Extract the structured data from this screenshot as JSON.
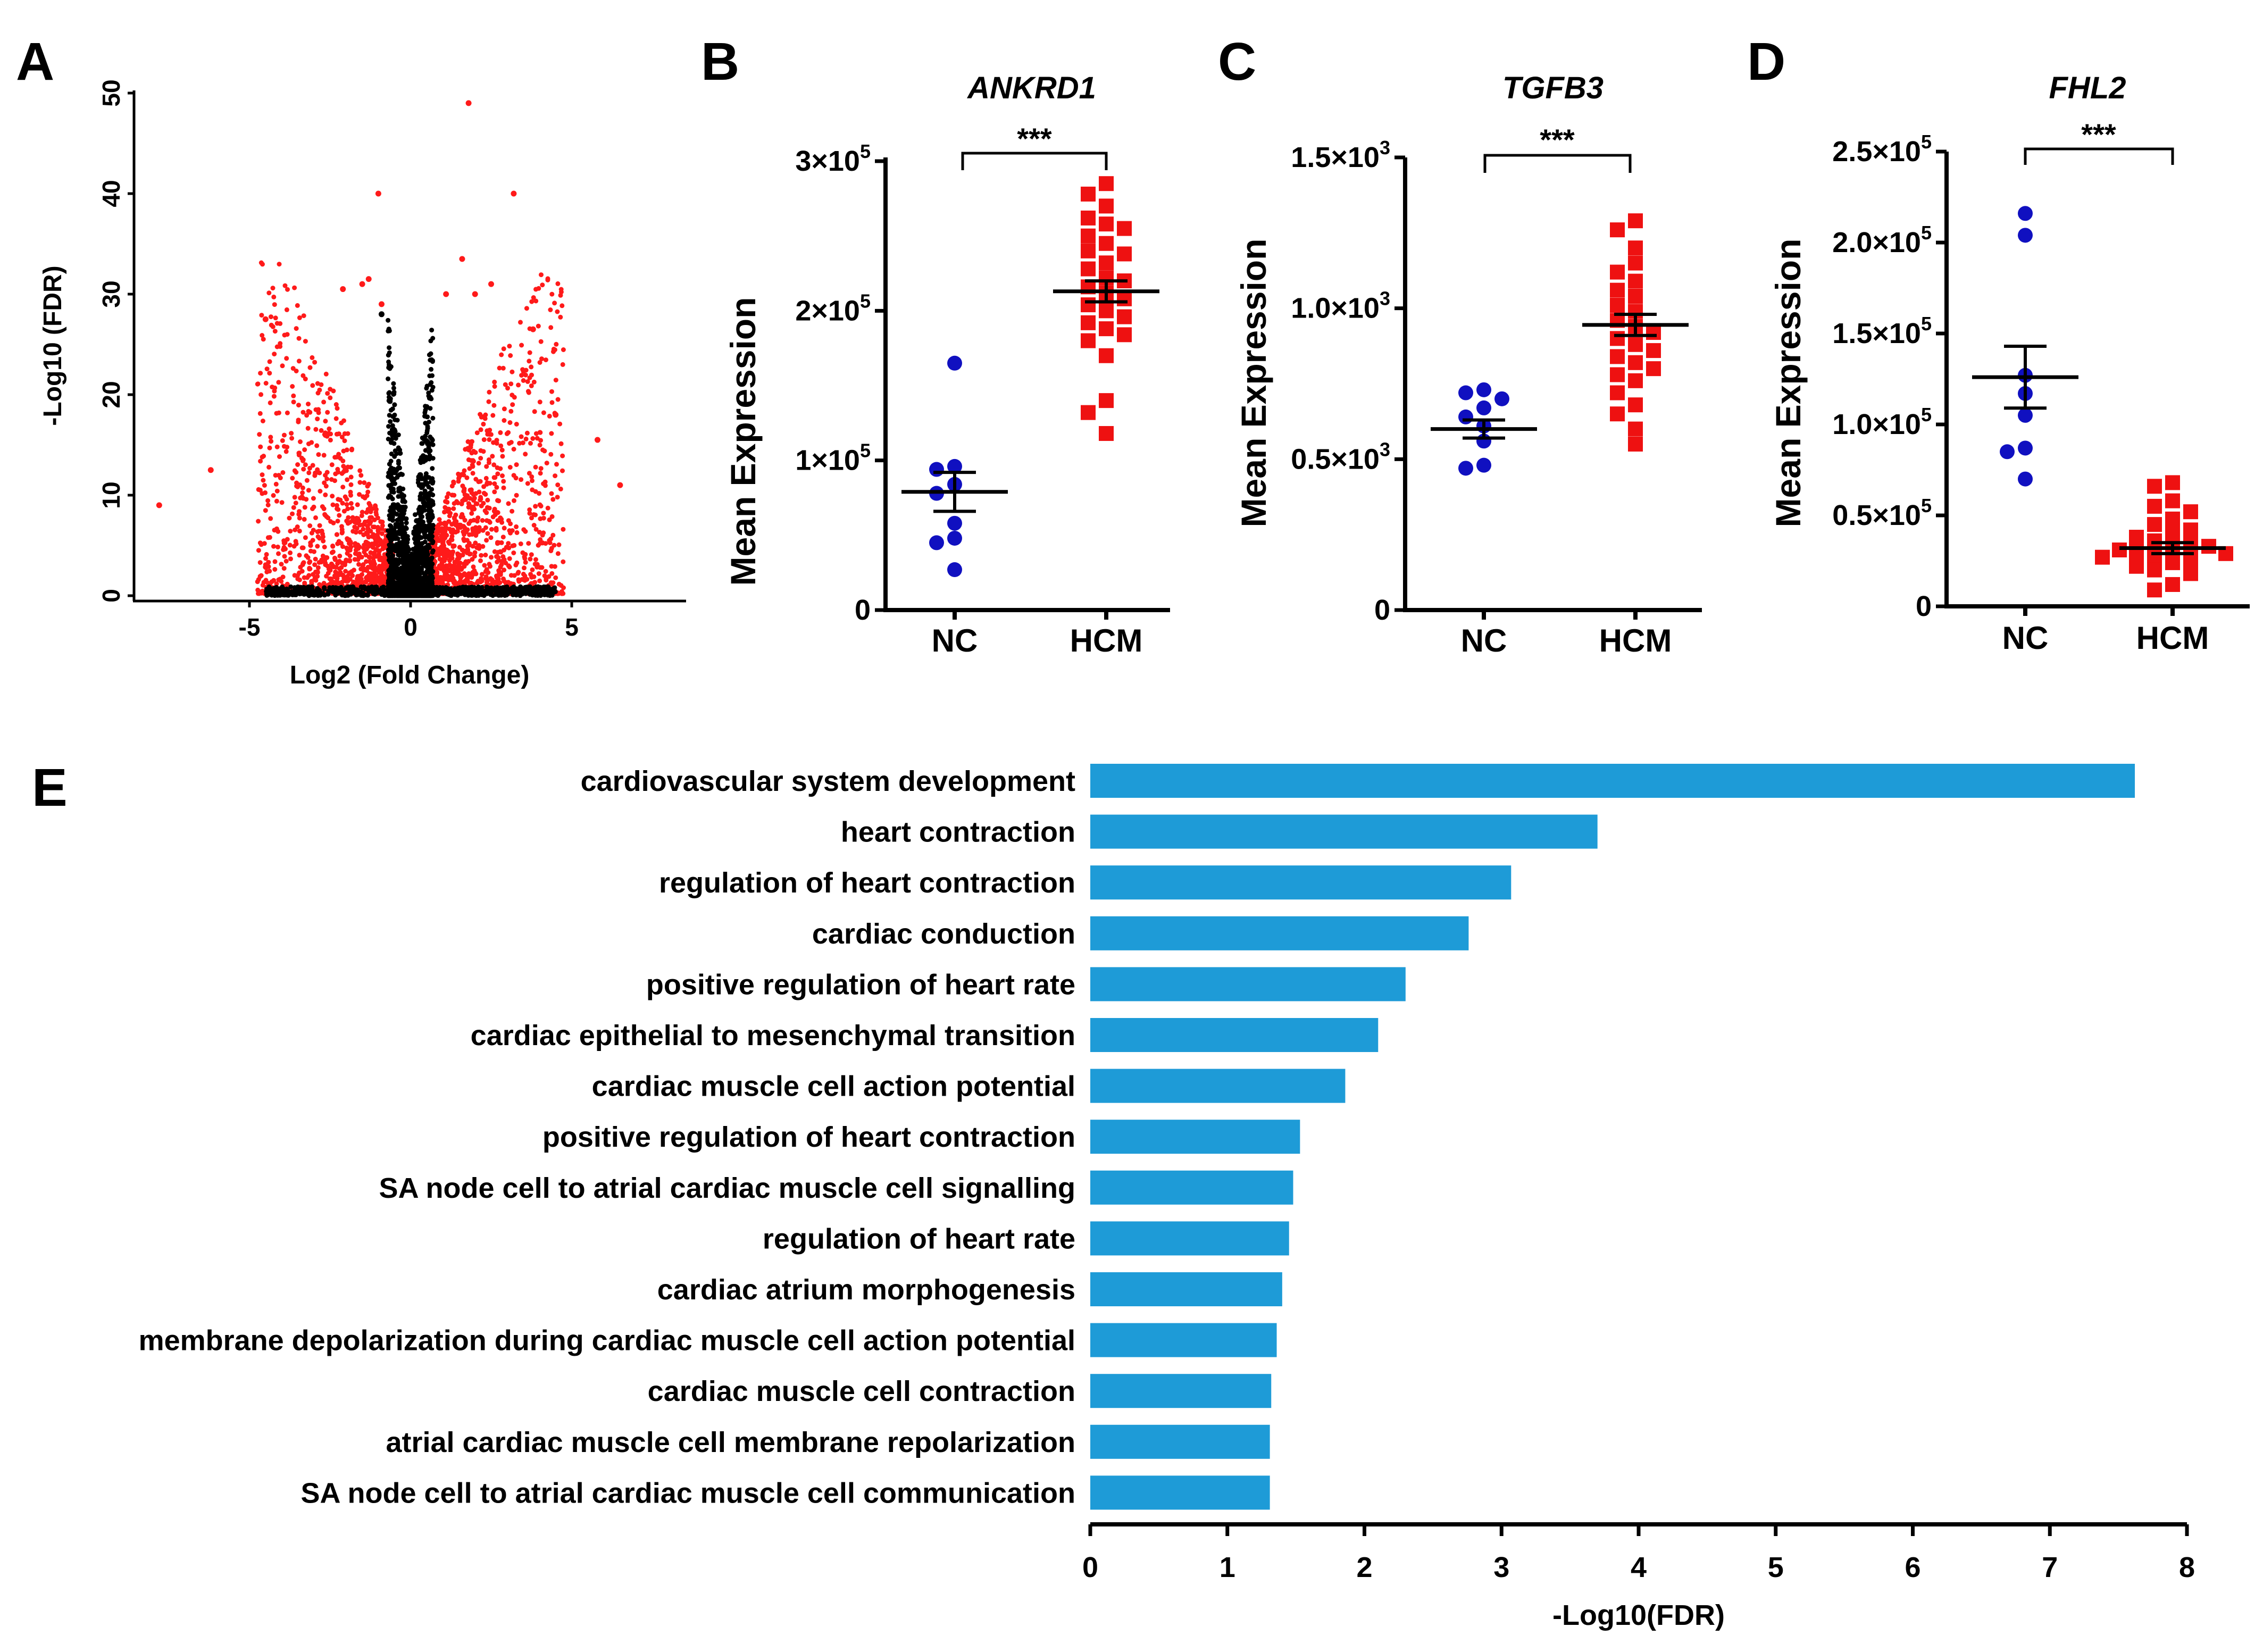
{
  "panels": {
    "a": {
      "letter": "A",
      "xlabel": "Log2 (Fold Change)",
      "ylabel": "-Log10 (FDR)",
      "xticks": [
        "-5",
        "0",
        "5"
      ],
      "yticks": [
        "0",
        "10",
        "20",
        "30",
        "40",
        "50"
      ]
    },
    "b": {
      "letter": "B",
      "gene": "ANKRD1",
      "ylabel": "Mean Expression",
      "yticks": [
        {
          "base": "0",
          "exp": ""
        },
        {
          "base": "1×10",
          "exp": "5"
        },
        {
          "base": "2×10",
          "exp": "5"
        },
        {
          "base": "3×10",
          "exp": "5"
        }
      ],
      "categories": [
        "NC",
        "HCM"
      ],
      "significance": "***"
    },
    "c": {
      "letter": "C",
      "gene": "TGFB3",
      "ylabel": "Mean Expression",
      "yticks": [
        {
          "base": "0",
          "exp": ""
        },
        {
          "base": "0.5×10",
          "exp": "3"
        },
        {
          "base": "1.0×10",
          "exp": "3"
        },
        {
          "base": "1.5×10",
          "exp": "3"
        }
      ],
      "categories": [
        "NC",
        "HCM"
      ],
      "significance": "***"
    },
    "d": {
      "letter": "D",
      "gene": "FHL2",
      "ylabel": "Mean Expression",
      "yticks": [
        {
          "base": "0",
          "exp": ""
        },
        {
          "base": "0.5×10",
          "exp": "5"
        },
        {
          "base": "1.0×10",
          "exp": "5"
        },
        {
          "base": "1.5×10",
          "exp": "5"
        },
        {
          "base": "2.0×10",
          "exp": "5"
        },
        {
          "base": "2.5×10",
          "exp": "5"
        }
      ],
      "categories": [
        "NC",
        "HCM"
      ],
      "significance": "***"
    },
    "e": {
      "letter": "E",
      "xlabel": "-Log10(FDR)",
      "xticks": [
        "0",
        "1",
        "2",
        "3",
        "4",
        "5",
        "6",
        "7",
        "8"
      ]
    }
  },
  "colors": {
    "nc": "#1010c0",
    "hcm": "#ee1111",
    "volcano_sig": "#ff1a1a",
    "volcano_ns": "#000000",
    "bar": "#1e9bd7"
  },
  "chart_data": [
    {
      "type": "scatter",
      "panel": "A",
      "title": "",
      "xlabel": "Log2 (Fold Change)",
      "ylabel": "-Log10 (FDR)",
      "xlim": [
        -8.5,
        8.5
      ],
      "ylim": [
        0,
        50
      ],
      "series": [
        {
          "name": "significant",
          "color": "#ff1a1a",
          "x": [
            1.8,
            -1.0,
            3.2,
            1.6,
            -1.3,
            -1.5,
            2.5,
            -2.1,
            2.0,
            1.1,
            -0.9,
            -4.5,
            3.8,
            6.5,
            -6.2,
            -7.8,
            4.5,
            5.8
          ],
          "y": [
            49.0,
            40.0,
            40.0,
            33.5,
            31.5,
            31.0,
            31.0,
            30.5,
            30.0,
            30.0,
            29.0,
            27.5,
            26.5,
            11.0,
            12.5,
            9.0,
            18.0,
            15.5
          ]
        },
        {
          "name": "not significant",
          "color": "#000000",
          "x": [
            -0.9,
            0.3,
            -0.3,
            0.1
          ],
          "y": [
            28.0,
            12.0,
            8.0,
            3.0
          ]
        }
      ]
    },
    {
      "type": "scatter",
      "panel": "B",
      "title": "ANKRD1",
      "ylabel": "Mean Expression",
      "categories": [
        "NC",
        "HCM"
      ],
      "ylim": [
        0,
        300000
      ],
      "series": [
        {
          "name": "NC",
          "color": "#1010c0",
          "mean": 79000,
          "sem": 13000,
          "values": [
            165000,
            96000,
            94000,
            84000,
            78000,
            58000,
            48000,
            45000,
            27000
          ]
        },
        {
          "name": "HCM",
          "color": "#ee1111",
          "mean": 213000,
          "sem": 7000,
          "values": [
            285000,
            278000,
            270000,
            262000,
            258000,
            255000,
            250000,
            245000,
            240000,
            238000,
            232000,
            228000,
            222000,
            220000,
            216000,
            212000,
            208000,
            204000,
            200000,
            196000,
            192000,
            188000,
            184000,
            180000,
            170000,
            140000,
            132000,
            118000
          ]
        }
      ],
      "significance": "***"
    },
    {
      "type": "scatter",
      "panel": "C",
      "title": "TGFB3",
      "ylabel": "Mean Expression",
      "categories": [
        "NC",
        "HCM"
      ],
      "ylim": [
        0,
        1500
      ],
      "series": [
        {
          "name": "NC",
          "color": "#1010c0",
          "mean": 600,
          "sem": 30,
          "values": [
            730,
            720,
            700,
            670,
            640,
            610,
            560,
            480,
            470
          ]
        },
        {
          "name": "HCM",
          "color": "#ee1111",
          "mean": 945,
          "sem": 35,
          "values": [
            1290,
            1260,
            1200,
            1150,
            1120,
            1090,
            1060,
            1040,
            1010,
            990,
            960,
            940,
            920,
            900,
            880,
            860,
            840,
            820,
            800,
            780,
            760,
            720,
            680,
            650,
            600,
            550
          ]
        }
      ],
      "significance": "***"
    },
    {
      "type": "scatter",
      "panel": "D",
      "title": "FHL2",
      "ylabel": "Mean Expression",
      "categories": [
        "NC",
        "HCM"
      ],
      "ylim": [
        0,
        250000
      ],
      "series": [
        {
          "name": "NC",
          "color": "#1010c0",
          "mean": 126000,
          "sem": 17000,
          "values": [
            216000,
            204000,
            127000,
            117000,
            105000,
            87000,
            85000,
            70000
          ]
        },
        {
          "name": "HCM",
          "color": "#ee1111",
          "mean": 32000,
          "sem": 3000,
          "values": [
            68000,
            66000,
            58000,
            55000,
            52000,
            48000,
            45000,
            42000,
            40000,
            38000,
            36000,
            34000,
            33000,
            32000,
            31000,
            30000,
            29000,
            28000,
            27000,
            26000,
            24000,
            22000,
            20000,
            18000,
            12000,
            9000
          ]
        }
      ],
      "significance": "***"
    },
    {
      "type": "bar",
      "panel": "E",
      "orientation": "horizontal",
      "xlabel": "-Log10(FDR)",
      "xlim": [
        0,
        8
      ],
      "categories": [
        "cardiovascular system development",
        "heart contraction",
        "regulation of heart contraction",
        "cardiac conduction",
        "positive regulation of heart rate",
        "cardiac epithelial to mesenchymal transition",
        "cardiac muscle cell action potential",
        "positive regulation of heart contraction",
        "SA node cell to atrial cardiac muscle cell signalling",
        "regulation of heart rate",
        "cardiac atrium morphogenesis",
        "membrane depolarization during cardiac muscle cell action potential",
        "cardiac muscle cell contraction",
        "atrial cardiac muscle cell membrane repolarization",
        "SA node cell to atrial cardiac muscle cell communication"
      ],
      "values": [
        7.62,
        3.7,
        3.07,
        2.76,
        2.3,
        2.1,
        1.86,
        1.53,
        1.48,
        1.45,
        1.4,
        1.36,
        1.32,
        1.31,
        1.31
      ]
    }
  ]
}
